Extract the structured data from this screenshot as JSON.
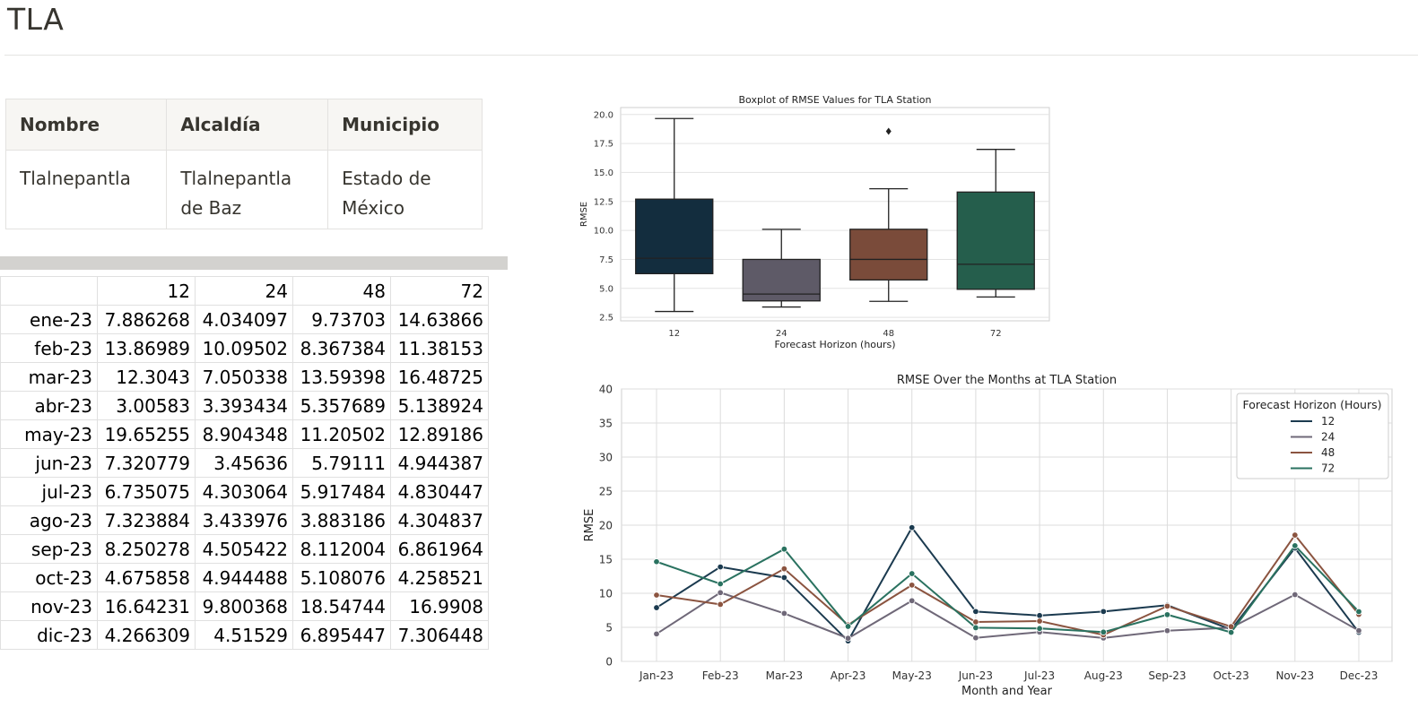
{
  "page": {
    "title": "TLA"
  },
  "info_table": {
    "headers": [
      "Nombre",
      "Alcaldía",
      "Municipio"
    ],
    "row": [
      "Tlalnepantla",
      "Tlalnepantla de Baz",
      "Estado de México"
    ]
  },
  "grid": {
    "columns": [
      "12",
      "24",
      "48",
      "72"
    ],
    "rows": [
      {
        "label": "ene-23",
        "values": [
          "7.886268",
          "4.034097",
          "9.73703",
          "14.63866"
        ]
      },
      {
        "label": "feb-23",
        "values": [
          "13.86989",
          "10.09502",
          "8.367384",
          "11.38153"
        ]
      },
      {
        "label": "mar-23",
        "values": [
          "12.3043",
          "7.050338",
          "13.59398",
          "16.48725"
        ]
      },
      {
        "label": "abr-23",
        "values": [
          "3.00583",
          "3.393434",
          "5.357689",
          "5.138924"
        ]
      },
      {
        "label": "may-23",
        "values": [
          "19.65255",
          "8.904348",
          "11.20502",
          "12.89186"
        ]
      },
      {
        "label": "jun-23",
        "values": [
          "7.320779",
          "3.45636",
          "5.79111",
          "4.944387"
        ]
      },
      {
        "label": "jul-23",
        "values": [
          "6.735075",
          "4.303064",
          "5.917484",
          "4.830447"
        ]
      },
      {
        "label": "ago-23",
        "values": [
          "7.323884",
          "3.433976",
          "3.883186",
          "4.304837"
        ]
      },
      {
        "label": "sep-23",
        "values": [
          "8.250278",
          "4.505422",
          "8.112004",
          "6.861964"
        ]
      },
      {
        "label": "oct-23",
        "values": [
          "4.675858",
          "4.944488",
          "5.108076",
          "4.258521"
        ]
      },
      {
        "label": "nov-23",
        "values": [
          "16.64231",
          "9.800368",
          "18.54744",
          "16.9908"
        ]
      },
      {
        "label": "dic-23",
        "values": [
          "4.266309",
          "4.51529",
          "6.895447",
          "7.306448"
        ]
      }
    ]
  },
  "chart_data": [
    {
      "type": "boxplot",
      "title": "Boxplot of RMSE Values for TLA Station",
      "xlabel": "Forecast Horizon (hours)",
      "ylabel": "RMSE",
      "ylim": [
        2.2,
        20.6
      ],
      "yticks": [
        "2.5",
        "5.0",
        "7.5",
        "10.0",
        "12.5",
        "15.0",
        "17.5",
        "20.0"
      ],
      "grid": true,
      "categories": [
        "12",
        "24",
        "48",
        "72"
      ],
      "boxes": [
        {
          "min": 3.00583,
          "q1": 6.27,
          "median": 7.6,
          "q3": 12.7,
          "max": 19.65255,
          "color": "#132d3e",
          "outliers": []
        },
        {
          "min": 3.393434,
          "q1": 3.92,
          "median": 4.51,
          "q3": 7.5,
          "max": 10.09502,
          "color": "#5e5a67",
          "outliers": []
        },
        {
          "min": 3.883186,
          "q1": 5.73,
          "median": 7.5,
          "q3": 10.1,
          "max": 13.59398,
          "color": "#7a4b3a",
          "outliers": [
            18.54744
          ]
        },
        {
          "min": 4.258521,
          "q1": 4.92,
          "median": 7.08,
          "q3": 13.31,
          "max": 16.9908,
          "color": "#255e4c",
          "outliers": []
        }
      ]
    },
    {
      "type": "line",
      "title": "RMSE Over the Months at TLA Station",
      "xlabel": "Month and Year",
      "ylabel": "RMSE",
      "ylim": [
        0,
        40
      ],
      "yticks": [
        "0",
        "5",
        "10",
        "15",
        "20",
        "25",
        "30",
        "35",
        "40"
      ],
      "grid": true,
      "categories": [
        "Jan-23",
        "Feb-23",
        "Mar-23",
        "Apr-23",
        "May-23",
        "Jun-23",
        "Jul-23",
        "Aug-23",
        "Sep-23",
        "Oct-23",
        "Nov-23",
        "Dec-23"
      ],
      "legend": {
        "title": "Forecast Horizon (Hours)",
        "position": "top-right"
      },
      "series": [
        {
          "name": "12",
          "color": "#1b3a4f",
          "values": [
            7.886268,
            13.86989,
            12.3043,
            3.00583,
            19.65255,
            7.320779,
            6.735075,
            7.323884,
            8.250278,
            4.675858,
            16.64231,
            4.266309
          ]
        },
        {
          "name": "24",
          "color": "#6f6878",
          "values": [
            4.034097,
            10.09502,
            7.050338,
            3.393434,
            8.904348,
            3.45636,
            4.303064,
            3.433976,
            4.505422,
            4.944488,
            9.800368,
            4.51529
          ]
        },
        {
          "name": "48",
          "color": "#8b5440",
          "values": [
            9.73703,
            8.367384,
            13.59398,
            5.357689,
            11.20502,
            5.79111,
            5.917484,
            3.883186,
            8.112004,
            5.108076,
            18.54744,
            6.895447
          ]
        },
        {
          "name": "72",
          "color": "#2a7260",
          "values": [
            14.63866,
            11.38153,
            16.48725,
            5.138924,
            12.89186,
            4.944387,
            4.830447,
            4.304837,
            6.861964,
            4.258521,
            16.9908,
            7.306448
          ]
        }
      ]
    }
  ]
}
